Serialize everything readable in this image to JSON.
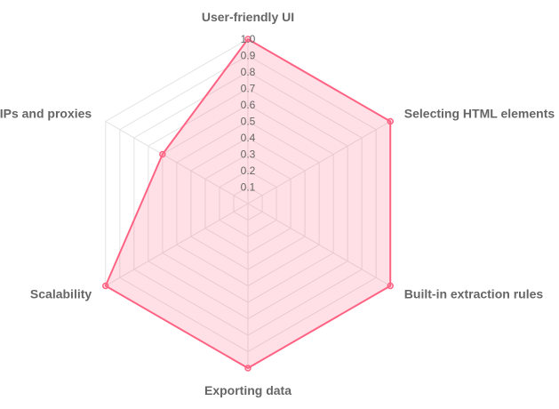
{
  "chart_data": {
    "type": "radar",
    "title": "",
    "categories": [
      "User-friendly UI",
      "Selecting HTML elements",
      "Built-in extraction rules",
      "Exporting data",
      "Scalability",
      "IPs and proxies"
    ],
    "series": [
      {
        "values": [
          1.0,
          1.0,
          1.0,
          1.0,
          1.0,
          0.6
        ]
      }
    ],
    "rlim": [
      0,
      1.0
    ],
    "ticks": [
      "0.1",
      "0.2",
      "0.3",
      "0.4",
      "0.5",
      "0.6",
      "0.7",
      "0.8",
      "0.9",
      "1.0"
    ],
    "grid": true,
    "legend": "none",
    "colors": {
      "line": "#ff6384",
      "fill": "rgba(255,99,132,0.2)",
      "grid": "#e3e3e3",
      "text": "#666666"
    }
  }
}
